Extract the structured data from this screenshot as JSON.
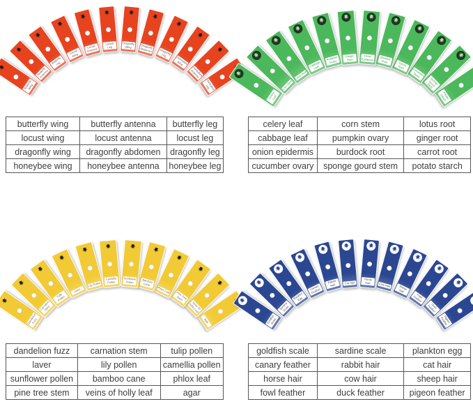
{
  "page": {
    "background": "#ffffff"
  },
  "sets": [
    {
      "id": "insects",
      "slide_color": "#e8431f",
      "icon_bg": "transparent",
      "icon_color": "#1c1c1c",
      "label_text_color": "#5a5a5a",
      "icon_name": "insect-silhouette-icon",
      "table_rows": [
        [
          "butterfly wing",
          "butterfly antenna",
          "butterfly leg"
        ],
        [
          "locust wing",
          "locust antenna",
          "locust leg"
        ],
        [
          "dragonfly wing",
          "dragonfly abdomen",
          "dragonfly leg"
        ],
        [
          "honeybee wing",
          "honeybee antenna",
          "honeybee leg"
        ]
      ]
    },
    {
      "id": "plants",
      "slide_color": "#4cb85c",
      "icon_bg": "#20361f",
      "icon_color": "#a8dfae",
      "label_text_color": "#3e9a4e",
      "icon_name": "plant-silhouette-icon",
      "table_rows": [
        [
          "celery leaf",
          "corn stem",
          "lotus root"
        ],
        [
          "cabbage leaf",
          "pumpkin ovary",
          "ginger root"
        ],
        [
          "onion epidermis",
          "burdock root",
          "carrot root"
        ],
        [
          "cucumber ovary",
          "sponge gourd stem",
          "potato starch"
        ]
      ]
    },
    {
      "id": "flowers",
      "slide_color": "#f2ca35",
      "icon_bg": "transparent",
      "icon_color": "#1c1c1c",
      "label_text_color": "#6a6a6a",
      "icon_name": "flower-silhouette-icon",
      "table_rows": [
        [
          "dandelion fuzz",
          "carnation stem",
          "tulip pollen"
        ],
        [
          "laver",
          "lily pollen",
          "camellia pollen"
        ],
        [
          "sunflower pollen",
          "bamboo cane",
          "phlox leaf"
        ],
        [
          "pine tree stem",
          "veins of holly leaf",
          "agar"
        ]
      ]
    },
    {
      "id": "animals",
      "slide_color": "#2b4792",
      "icon_bg": "#ffffff",
      "icon_color": "#2b4792",
      "label_text_color": "#4a4a4a",
      "icon_name": "animal-silhouette-icon",
      "table_rows": [
        [
          "goldfish scale",
          "sardine scale",
          "plankton egg"
        ],
        [
          "canary feather",
          "rabbit hair",
          "cat hair"
        ],
        [
          "horse hair",
          "cow hair",
          "sheep hair"
        ],
        [
          "fowl feather",
          "duck feather",
          "pigeon feather"
        ]
      ]
    }
  ]
}
